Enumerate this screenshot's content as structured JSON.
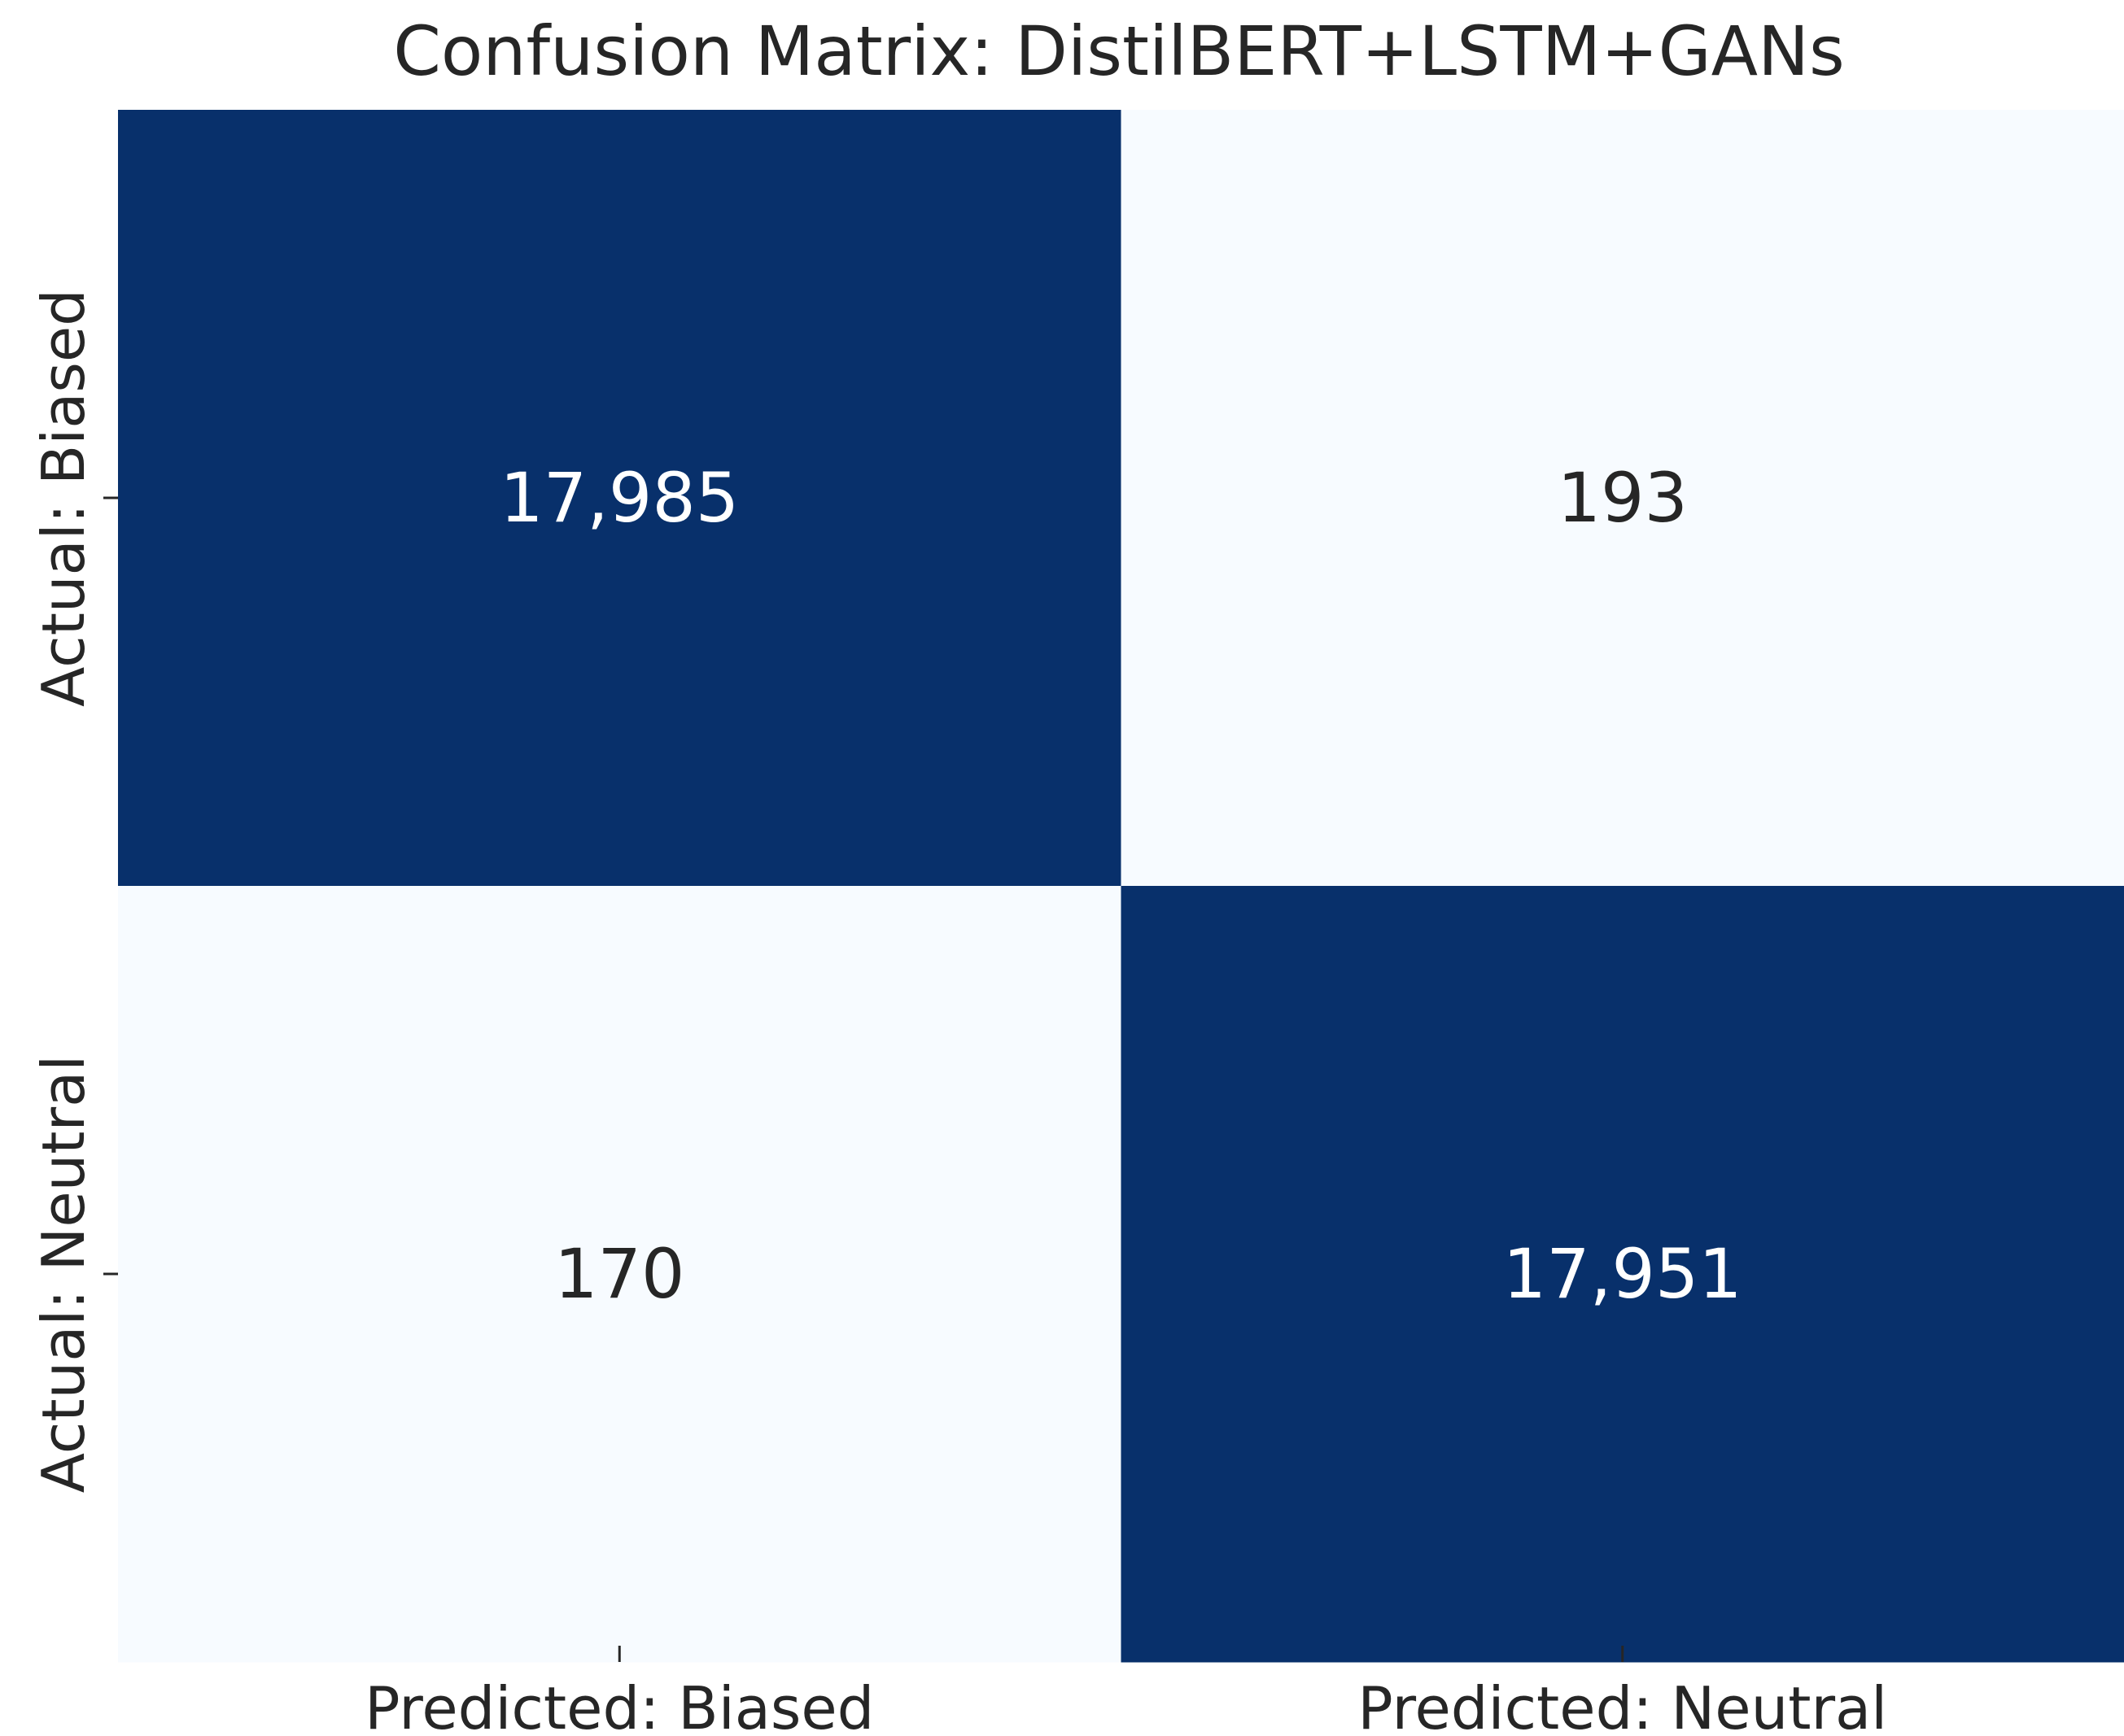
{
  "chart_data": {
    "type": "heatmap",
    "title": "Confusion Matrix: DistilBERT+LSTM+GANs",
    "x_categories": [
      "Predicted: Biased",
      "Predicted: Neutral"
    ],
    "y_categories": [
      "Actual: Biased",
      "Actual: Neutral"
    ],
    "values": [
      [
        17985,
        193
      ],
      [
        170,
        17951
      ]
    ],
    "cell_labels": [
      [
        "17,985",
        "193"
      ],
      [
        "170",
        "17,951"
      ]
    ],
    "colormap": "Blues",
    "colors": {
      "high": "#08306b",
      "low": "#f7fbff",
      "text_on_dark": "#ffffff",
      "text_on_light": "#262626",
      "axis_text": "#262626"
    },
    "colorbar": false,
    "grid": false
  }
}
